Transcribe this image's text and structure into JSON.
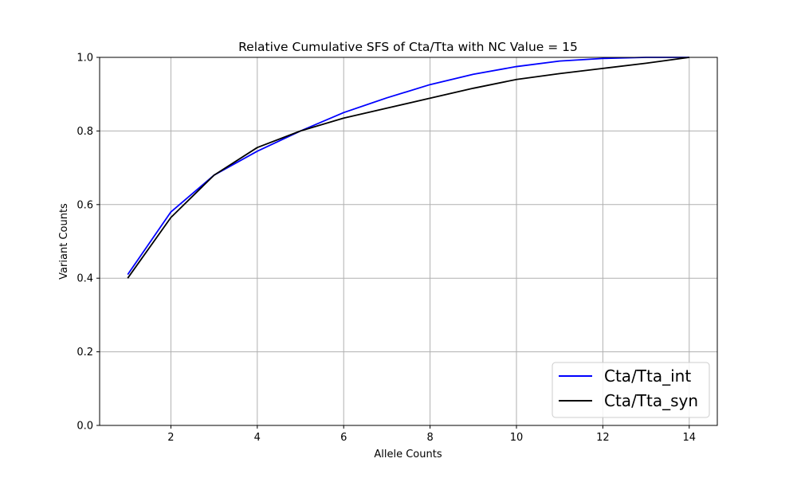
{
  "chart_data": {
    "type": "line",
    "title": "Relative Cumulative SFS of Cta/Tta with NC Value = 15",
    "xlabel": "Allele Counts",
    "ylabel": "Variant Counts",
    "xlim": [
      0.35,
      14.65
    ],
    "ylim": [
      0,
      1.0
    ],
    "xticks": [
      2,
      4,
      6,
      8,
      10,
      12,
      14
    ],
    "yticks": [
      0.0,
      0.2,
      0.4,
      0.6,
      0.8,
      1.0
    ],
    "xtick_labels": [
      "2",
      "4",
      "6",
      "8",
      "10",
      "12",
      "14"
    ],
    "ytick_labels": [
      "0.0",
      "0.2",
      "0.4",
      "0.6",
      "0.8",
      "1.0"
    ],
    "grid": true,
    "legend_position": "lower-right",
    "x": [
      1,
      2,
      3,
      4,
      5,
      6,
      7,
      8,
      9,
      10,
      11,
      12,
      13,
      14
    ],
    "series": [
      {
        "name": "Cta/Tta_int",
        "color": "#0000ff",
        "values": [
          0.41,
          0.58,
          0.68,
          0.745,
          0.8,
          0.85,
          0.89,
          0.926,
          0.954,
          0.975,
          0.99,
          0.997,
          1.0,
          1.0
        ]
      },
      {
        "name": "Cta/Tta_syn",
        "color": "#000000",
        "values": [
          0.4,
          0.565,
          0.68,
          0.755,
          0.8,
          0.835,
          0.862,
          0.889,
          0.916,
          0.94,
          0.956,
          0.97,
          0.984,
          1.0
        ]
      }
    ]
  }
}
